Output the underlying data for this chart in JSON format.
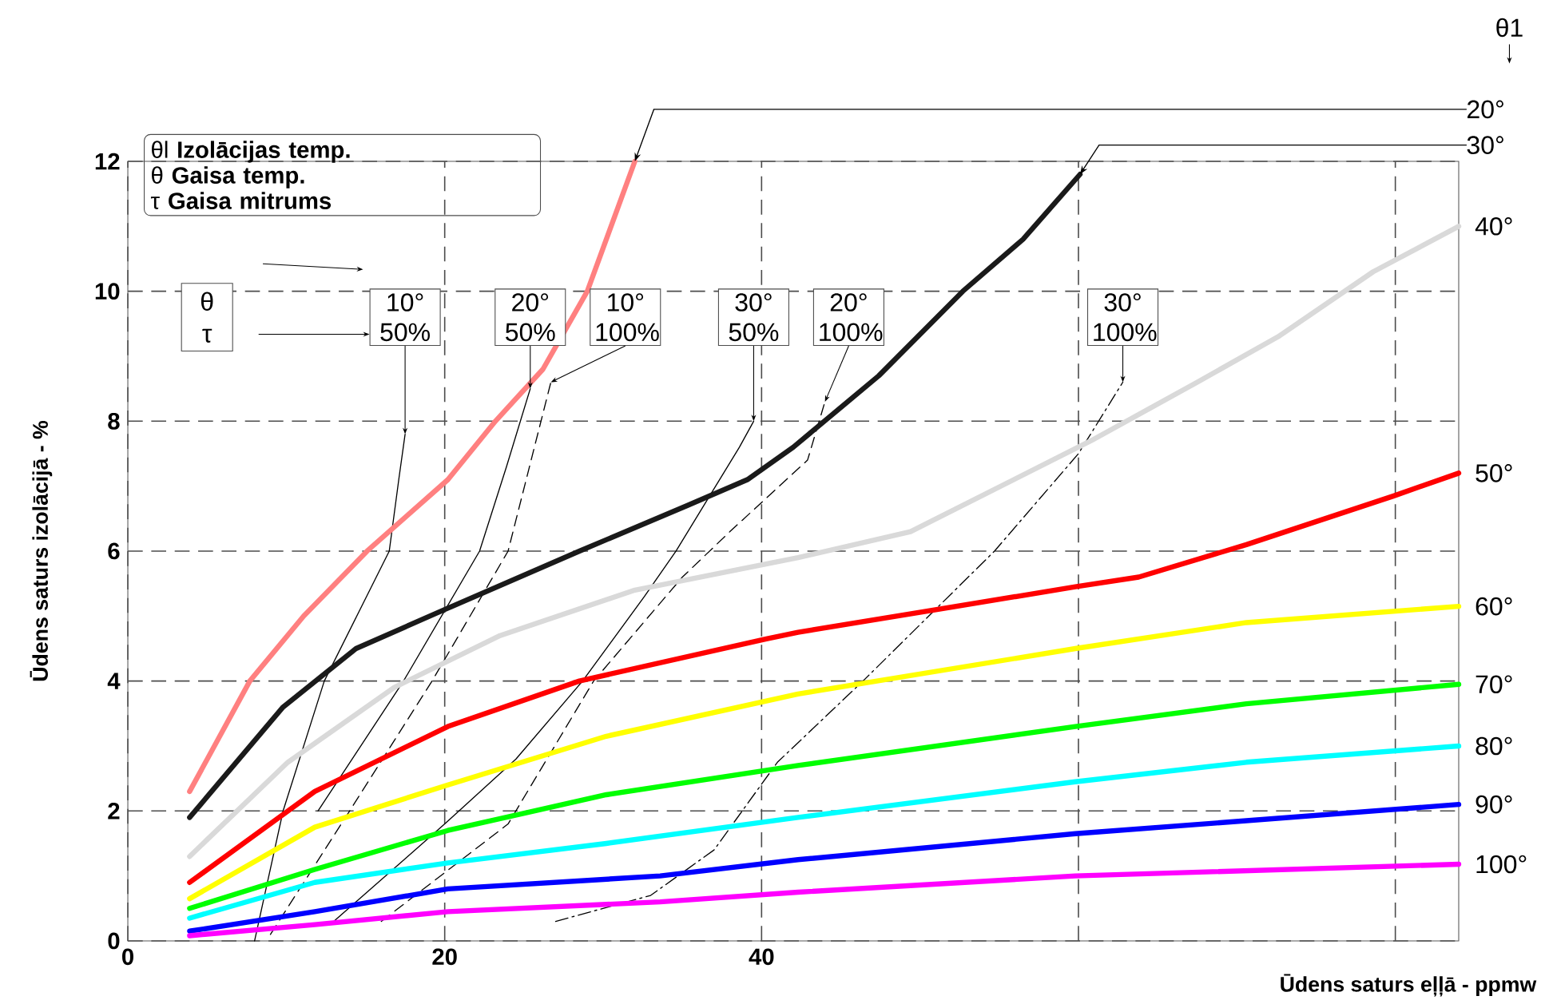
{
  "chart_data": {
    "type": "line",
    "xlabel": "Ūdens saturs eļļā - ppmw",
    "ylabel": "Ūdens saturs izolācijā - %",
    "legend_title": "θ1",
    "xlim": [
      0,
      84
    ],
    "ylim": [
      0,
      12
    ],
    "xticks": [
      0,
      20,
      40,
      {
        "value": 60,
        "label": null
      },
      {
        "value": 80,
        "label": null
      }
    ],
    "yticks": [
      0,
      2,
      4,
      6,
      8,
      10,
      12
    ],
    "grid": true,
    "annotations": [
      "θl **Izolācijas temp.**",
      "θ **Gaisa temp.**",
      "τ **Gaisa mitrums**",
      "θ",
      "τ"
    ],
    "series": [
      {
        "name": "20°",
        "color": "#ff8080",
        "x": [
          3.9,
          7.7,
          11.1,
          15.1,
          20.2,
          23.2,
          26.2,
          29,
          32
        ],
        "values": [
          2.3,
          4.0,
          5.0,
          6.0,
          7.1,
          8.0,
          8.8,
          10,
          12
        ]
      },
      {
        "name": "30°",
        "color": "#1a1a1a",
        "x": [
          3.9,
          9.8,
          14.4,
          20,
          28.5,
          35.3,
          39.1,
          42,
          47.4,
          52.7,
          56.5,
          60.1
        ],
        "values": [
          1.9,
          3.6,
          4.5,
          5.1,
          6.0,
          6.7,
          7.1,
          7.6,
          8.7,
          10.0,
          10.8,
          11.8
        ]
      },
      {
        "name": "40°",
        "color": "#d9d9d9",
        "x": [
          3.9,
          10.1,
          16.8,
          23.5,
          32,
          42.3,
          49.4,
          60.8,
          67.5,
          72.6,
          78.6,
          84
        ],
        "values": [
          1.3,
          2.75,
          3.9,
          4.7,
          5.4,
          5.9,
          6.3,
          7.7,
          8.6,
          9.3,
          10.3,
          11.0
        ]
      },
      {
        "name": "50°",
        "color": "#ff0000",
        "x": [
          3.9,
          11.8,
          20.2,
          28.5,
          40.3,
          42.3,
          59.8,
          63.8,
          70.6,
          79.9,
          84
        ],
        "values": [
          0.9,
          2.3,
          3.3,
          4.0,
          4.65,
          4.75,
          5.45,
          5.6,
          6.1,
          6.85,
          7.2
        ]
      },
      {
        "name": "60°",
        "color": "#ffff00",
        "x": [
          3.9,
          11.8,
          20.2,
          30.2,
          42.3,
          59.8,
          70.6,
          84
        ],
        "values": [
          0.65,
          1.75,
          2.4,
          3.15,
          3.8,
          4.5,
          4.9,
          5.15
        ]
      },
      {
        "name": "70°",
        "color": "#00ff00",
        "x": [
          3.9,
          11.8,
          20.2,
          30.2,
          42.3,
          59.8,
          70.6,
          84
        ],
        "values": [
          0.5,
          1.1,
          1.7,
          2.25,
          2.7,
          3.3,
          3.65,
          3.95
        ]
      },
      {
        "name": "80°",
        "color": "#00ffff",
        "x": [
          3.9,
          11.8,
          20.2,
          30.2,
          42.3,
          59.8,
          70.6,
          84
        ],
        "values": [
          0.35,
          0.9,
          1.2,
          1.5,
          1.9,
          2.45,
          2.75,
          3.0
        ]
      },
      {
        "name": "90°",
        "color": "#0000ff",
        "x": [
          3.9,
          11.8,
          20.2,
          33.6,
          42.3,
          59.8,
          70.6,
          84
        ],
        "values": [
          0.15,
          0.45,
          0.8,
          1.0,
          1.25,
          1.65,
          1.85,
          2.1
        ]
      },
      {
        "name": "100°",
        "color": "#ff00ff",
        "x": [
          3.9,
          11.8,
          20.2,
          33.6,
          42.3,
          59.8,
          84
        ],
        "values": [
          0.08,
          0.25,
          0.45,
          0.6,
          0.75,
          1.0,
          1.18
        ]
      },
      {
        "name": "10° 50%",
        "color": "#000000",
        "line_style": "solid",
        "x": [
          8,
          9.8,
          12.4,
          16.5,
          17.1,
          17.5
        ],
        "values": [
          0,
          2,
          4,
          6,
          7.1,
          7.8
        ]
      },
      {
        "name": "20° 50%",
        "color": "#000000",
        "line_style": "solid",
        "x": [
          12,
          17.4,
          22.2,
          23.9,
          25.4
        ],
        "values": [
          2,
          4,
          6,
          7.3,
          8.5
        ]
      },
      {
        "name": "10° 100%",
        "color": "#000000",
        "line_style": "dashed",
        "x": [
          9,
          14,
          19.2,
          24,
          26.7
        ],
        "values": [
          0.1,
          2,
          4,
          6,
          8.6
        ]
      },
      {
        "name": "30° 50%",
        "color": "#000000",
        "line_style": "solid",
        "x": [
          13,
          20,
          24.5,
          28.7,
          32.6,
          34.6,
          38.6,
          39.5
        ],
        "values": [
          0.3,
          1.8,
          2.8,
          4,
          5.3,
          6,
          7.6,
          8.0
        ]
      },
      {
        "name": "20° 100%",
        "color": "#000000",
        "line_style": "dashed",
        "x": [
          16,
          24,
          29.4,
          35,
          38,
          42.9,
          44
        ],
        "values": [
          0.3,
          1.8,
          4,
          5.6,
          6.3,
          7.4,
          8.3
        ]
      },
      {
        "name": "30° 100%",
        "color": "#000000",
        "line_style": "dashdot",
        "x": [
          27,
          33,
          37,
          41,
          46.4,
          54.7,
          60,
          62.8
        ],
        "values": [
          0.3,
          0.7,
          1.4,
          2.75,
          4.0,
          6.0,
          7.5,
          8.6
        ]
      }
    ]
  }
}
